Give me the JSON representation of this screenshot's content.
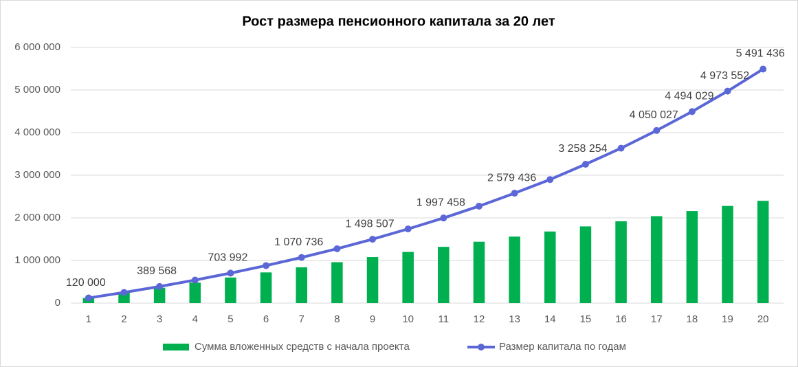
{
  "chart_data": {
    "type": "bar_line",
    "title": "Рост размера пенсионного капитала за 20 лет",
    "categories": [
      "1",
      "2",
      "3",
      "4",
      "5",
      "6",
      "7",
      "8",
      "9",
      "10",
      "11",
      "12",
      "13",
      "14",
      "15",
      "16",
      "17",
      "18",
      "19",
      "20"
    ],
    "series": [
      {
        "name": "Сумма вложенных средств с начала проекта",
        "type": "bar",
        "color": "#00b050",
        "values": [
          120000,
          240000,
          360000,
          480000,
          600000,
          720000,
          840000,
          960000,
          1080000,
          1200000,
          1320000,
          1440000,
          1560000,
          1680000,
          1800000,
          1920000,
          2040000,
          2160000,
          2280000,
          2400000
        ]
      },
      {
        "name": "Размер капитала по годам",
        "type": "line",
        "color": "#5b67d6",
        "values": [
          120000,
          250000,
          389568,
          540000,
          703992,
          880000,
          1070736,
          1275000,
          1498507,
          1740000,
          1997458,
          2275000,
          2579436,
          2900000,
          3258254,
          3635000,
          4050027,
          4494029,
          4973552,
          5491436
        ],
        "value_labels": [
          "120 000",
          null,
          "389 568",
          null,
          "703 992",
          null,
          "1 070 736",
          null,
          "1 498 507",
          null,
          "1 997 458",
          null,
          "2 579 436",
          null,
          "3 258 254",
          null,
          "4 050 027",
          "4 494 029",
          "4 973 552",
          "5 491 436"
        ]
      }
    ],
    "ylim": [
      0,
      6000000
    ],
    "yticks": [
      0,
      {
        "value": 1000000,
        "label": "1 000 000"
      },
      {
        "value": 2000000,
        "label": "2 000 000"
      },
      {
        "value": 3000000,
        "label": "3 000 000"
      },
      {
        "value": 4000000,
        "label": "4 000 000"
      },
      {
        "value": 5000000,
        "label": "5 000 000"
      },
      {
        "value": 6000000,
        "label": "6 000 000"
      }
    ],
    "grid": true,
    "legend": "bottom"
  }
}
